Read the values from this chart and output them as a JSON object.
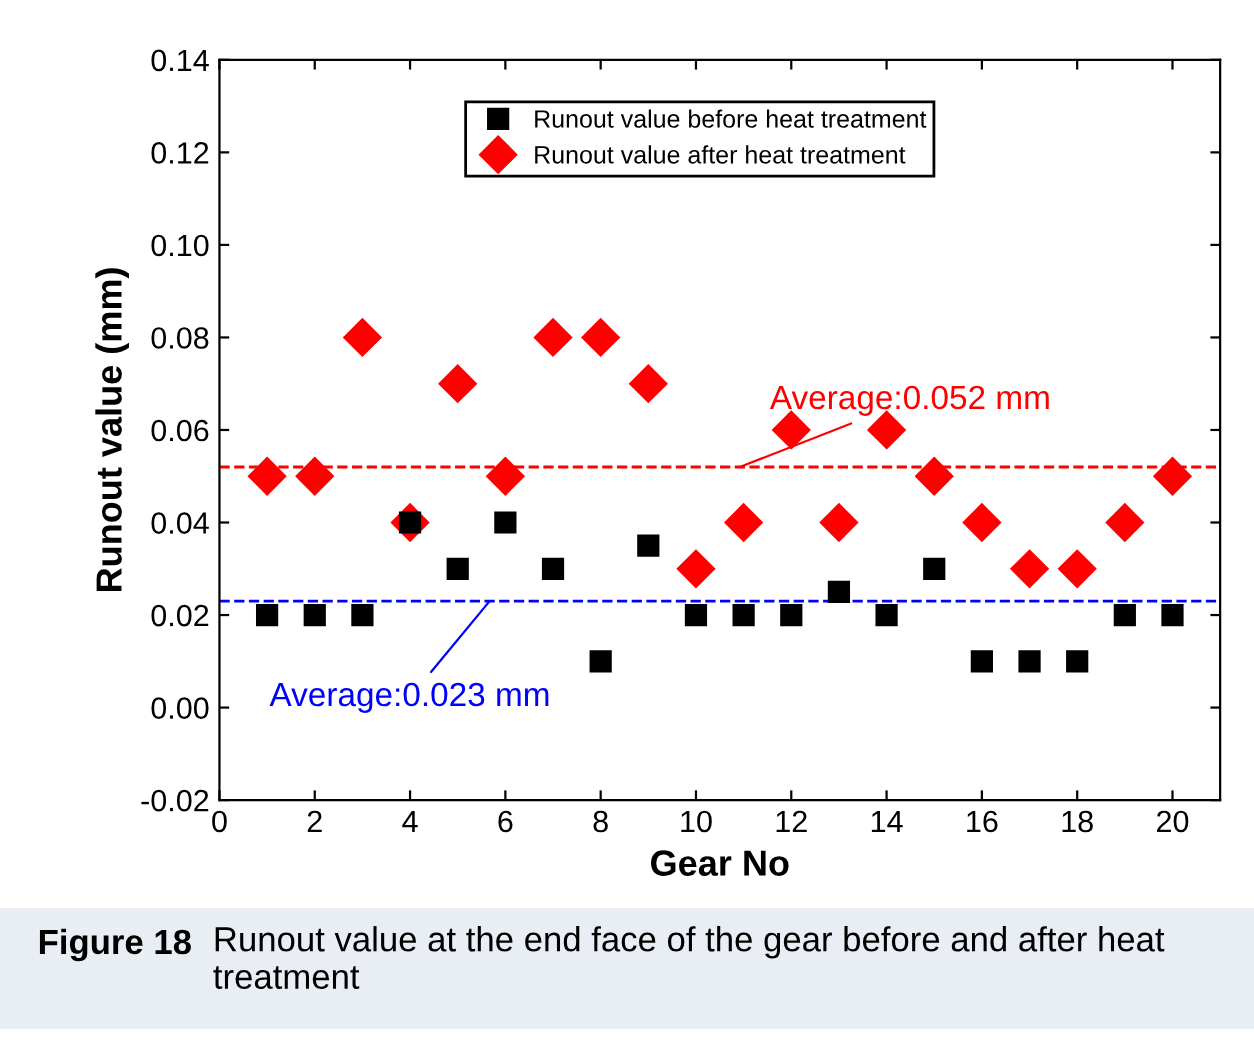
{
  "chart_data": {
    "type": "scatter",
    "xlabel": "Gear No",
    "ylabel": "Runout value (mm)",
    "x": [
      1,
      2,
      3,
      4,
      5,
      6,
      7,
      8,
      9,
      10,
      11,
      12,
      13,
      14,
      15,
      16,
      17,
      18,
      19,
      20
    ],
    "series": [
      {
        "name": "Runout value before heat treatment",
        "color": "#000000",
        "marker": "square",
        "values": [
          0.02,
          0.02,
          0.02,
          0.04,
          0.03,
          0.04,
          0.03,
          0.01,
          0.035,
          0.02,
          0.02,
          0.02,
          0.025,
          0.02,
          0.03,
          0.01,
          0.01,
          0.01,
          0.02,
          0.02
        ]
      },
      {
        "name": "Runout value after heat treatment",
        "color": "#ff0000",
        "marker": "diamond",
        "values": [
          0.05,
          0.05,
          0.08,
          0.04,
          0.07,
          0.05,
          0.08,
          0.08,
          0.07,
          0.03,
          0.04,
          0.06,
          0.04,
          0.06,
          0.05,
          0.04,
          0.03,
          0.03,
          0.04,
          0.05
        ]
      }
    ],
    "xlim": [
      0,
      21
    ],
    "xticks": [
      0,
      2,
      4,
      6,
      8,
      10,
      12,
      14,
      16,
      18,
      20
    ],
    "ylim": [
      -0.02,
      0.14
    ],
    "yticks": [
      {
        "value": -0.02,
        "label": "-0.02"
      },
      {
        "value": 0,
        "label": "0.00"
      },
      {
        "value": 0.02,
        "label": "0.02"
      },
      {
        "value": 0.04,
        "label": "0.04"
      },
      {
        "value": 0.06,
        "label": "0.06"
      },
      {
        "value": 0.08,
        "label": "0.08"
      },
      {
        "value": 0.1,
        "label": "0.10"
      },
      {
        "value": 0.12,
        "label": "0.12"
      },
      {
        "value": 0.14,
        "label": "0.14"
      }
    ],
    "ref_lines": [
      {
        "axis": "y",
        "value": 0.052,
        "label": "Average:0.052 mm",
        "color": "#ff0000",
        "line_style": "dashed"
      },
      {
        "axis": "y",
        "value": 0.023,
        "label": "Average:0.023 mm",
        "color": "#0000ff",
        "line_style": "dashed"
      }
    ],
    "legend": "top",
    "grid": false,
    "annotations": [
      "Figure 18",
      "Runout value at the end face of the gear before and after heat treatment"
    ]
  }
}
